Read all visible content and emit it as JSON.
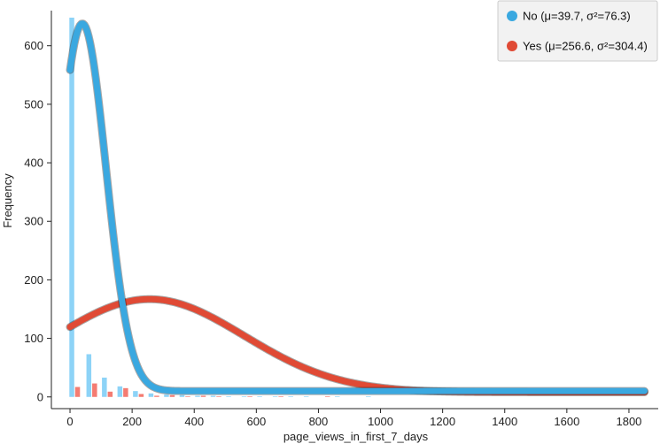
{
  "chart_data": {
    "type": "bar",
    "xlabel": "page_views_in_first_7_days",
    "ylabel": "Frequency",
    "xlim": [
      -60,
      1900
    ],
    "ylim": [
      -20,
      660
    ],
    "x_ticks": [
      0,
      200,
      400,
      600,
      800,
      1000,
      1200,
      1400,
      1600,
      1800
    ],
    "y_ticks": [
      0,
      100,
      200,
      300,
      400,
      500,
      600
    ],
    "grid": false,
    "legend_position": "top-right",
    "bin_centers": [
      15,
      70,
      120,
      170,
      220,
      270,
      320,
      370,
      420,
      470,
      520,
      570,
      620,
      670,
      720,
      770,
      820,
      870,
      920,
      970
    ],
    "series": [
      {
        "name": "No (μ=39.7, σ²=76.3)",
        "color": "#8dd3f7",
        "curve_color": "#3aa8e0",
        "mean": 39.7,
        "sd": 76.3,
        "histogram": [
          648,
          73,
          33,
          18,
          10,
          6,
          4,
          3,
          2,
          2,
          1,
          1,
          1,
          1,
          1,
          1,
          0,
          1,
          0,
          1
        ],
        "curve_peak": 638,
        "curve_baseline": 10
      },
      {
        "name": "Yes (μ=256.6, σ²=304.4)",
        "color": "#f47c72",
        "curve_color": "#e04a35",
        "mean": 256.6,
        "sd": 304.4,
        "histogram": [
          17,
          23,
          9,
          15,
          5,
          2,
          3,
          1,
          2,
          1,
          0,
          1,
          0,
          1,
          0,
          0,
          1,
          0,
          0,
          0
        ],
        "curve_peak": 167,
        "curve_baseline": 8
      }
    ]
  }
}
